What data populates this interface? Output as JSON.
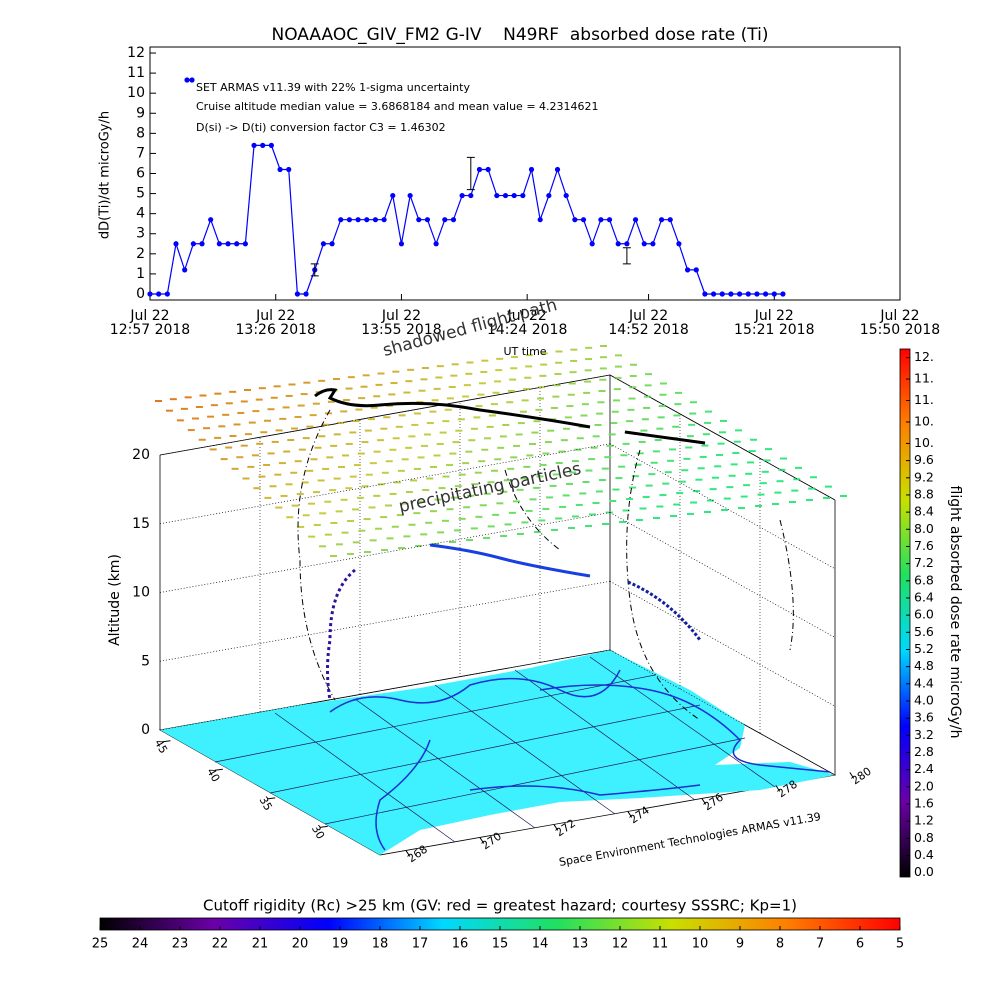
{
  "chart_data": [
    {
      "type": "line",
      "title": "NOAAAOC_GIV_FM2 G-IV    N49RF  absorbed dose rate (Ti)",
      "x_label": "UT time",
      "y_label": "dD(Ti)/dt microGy/h",
      "x": [
        "12:57",
        "12:59",
        "13:01",
        "13:03",
        "13:05",
        "13:07",
        "13:09",
        "13:11",
        "13:13",
        "13:15",
        "13:17",
        "13:19",
        "13:21",
        "13:23",
        "13:25",
        "13:27",
        "13:29",
        "13:31",
        "13:33",
        "13:35",
        "13:37",
        "13:39",
        "13:41",
        "13:43",
        "13:45",
        "13:47",
        "13:49",
        "13:51",
        "13:53",
        "13:55",
        "13:57",
        "13:59",
        "14:01",
        "14:03",
        "14:05",
        "14:07",
        "14:09",
        "14:11",
        "14:13",
        "14:15",
        "14:17",
        "14:19",
        "14:21",
        "14:23",
        "14:25",
        "14:27",
        "14:29",
        "14:31",
        "14:33",
        "14:35",
        "14:37",
        "14:39",
        "14:41",
        "14:43",
        "14:45",
        "14:47",
        "14:49",
        "14:51",
        "14:53",
        "14:55",
        "14:57",
        "14:59",
        "15:01",
        "15:03",
        "15:05",
        "15:07",
        "15:09",
        "15:11",
        "15:13",
        "15:15",
        "15:17",
        "15:19",
        "15:21",
        "15:23"
      ],
      "series": [
        {
          "name": "SET ARMAS v11.39 with 22% 1-sigma uncertainty",
          "color": "#0000ff",
          "values": [
            0,
            0,
            0,
            2.5,
            1.2,
            2.5,
            2.5,
            3.7,
            2.5,
            2.5,
            2.5,
            2.5,
            7.4,
            7.4,
            7.4,
            6.2,
            6.2,
            0,
            0,
            1.2,
            2.5,
            2.5,
            3.7,
            3.7,
            3.7,
            3.7,
            3.7,
            3.7,
            4.9,
            2.5,
            4.9,
            3.7,
            3.7,
            2.5,
            3.7,
            3.7,
            4.9,
            4.9,
            6.2,
            6.2,
            4.9,
            4.9,
            4.9,
            4.9,
            6.2,
            3.7,
            4.9,
            6.2,
            4.9,
            3.7,
            3.7,
            2.5,
            3.7,
            3.7,
            2.5,
            2.5,
            3.7,
            2.5,
            2.5,
            3.7,
            3.7,
            2.5,
            1.2,
            1.2,
            0,
            0,
            0,
            0,
            0,
            0,
            0,
            0,
            0,
            0
          ]
        }
      ],
      "annotations": [
        "Cruise altitude median value = 3.6868184 and mean value = 4.2314621",
        "D(si) -> D(ti) conversion factor C3 = 1.46302"
      ],
      "error_bars": {
        "x": [
          "13:35",
          "14:11",
          "14:47"
        ],
        "values": [
          1.2,
          6,
          1.9
        ],
        "errors": [
          0.3,
          0.8,
          0.4
        ]
      },
      "xlim": [
        "12:57",
        "15:50"
      ],
      "xticks": [
        {
          "value": "12:57",
          "label": "Jul 22\n12:57 2018"
        },
        {
          "value": "13:26",
          "label": "Jul 22\n13:26 2018"
        },
        {
          "value": "13:55",
          "label": "Jul 22\n13:55 2018"
        },
        {
          "value": "14:24",
          "label": "Jul 22\n14:24 2018"
        },
        {
          "value": "14:52",
          "label": "Jul 22\n14:52 2018"
        },
        {
          "value": "15:21",
          "label": "Jul 22\n15:21 2018"
        },
        {
          "value": "15:50",
          "label": "Jul 22\n15:50 2018"
        }
      ],
      "ylim": [
        -0.3,
        12.3
      ],
      "yticks": [
        0,
        1,
        2,
        3,
        4,
        5,
        6,
        7,
        8,
        9,
        10,
        11,
        12
      ]
    },
    {
      "type": "surface3d",
      "z_label": "Altitude (km)",
      "zlim": [
        0,
        20
      ],
      "zticks": [
        0,
        5,
        10,
        15,
        20
      ],
      "lat_ticks": [
        45,
        40,
        35,
        30
      ],
      "latlim": [
        46,
        25
      ],
      "lon_ticks": [
        268,
        270,
        272,
        274,
        276,
        278,
        280
      ],
      "lonlim": [
        267.3,
        279.6
      ],
      "annotations": [
        "precipitating particles",
        "shadowed flight path"
      ],
      "credit": "Space Environment Technologies ARMAS v11.39"
    },
    {
      "type": "colorbar",
      "orientation": "vertical",
      "label": "flight absorbed dose rate microGy/h",
      "colors": [
        "#000000",
        "#6a00a8",
        "#0000ff",
        "#00d8ff",
        "#20e060",
        "#c8e000",
        "#ff8000",
        "#ff0000"
      ],
      "ylim": [
        -0.1,
        12.2
      ],
      "yticks": [
        {
          "value": 0,
          "label": "0.0"
        },
        0.4,
        0.8,
        1.2,
        1.6,
        {
          "value": 2,
          "label": "2.0"
        },
        2.4,
        2.8,
        3.2,
        3.6,
        {
          "value": 4,
          "label": "4.0"
        },
        4.4,
        4.8,
        5.2,
        5.6,
        {
          "value": 6,
          "label": "6.0"
        },
        6.4,
        6.8,
        7.2,
        7.6,
        {
          "value": 8,
          "label": "8.0"
        },
        8.4,
        8.8,
        9.2,
        9.6,
        {
          "value": 10,
          "label": "10."
        },
        {
          "value": 10.5,
          "label": "10."
        },
        {
          "value": 11,
          "label": "11."
        },
        {
          "value": 11.5,
          "label": "11."
        },
        {
          "value": 12,
          "label": "12."
        }
      ]
    },
    {
      "type": "colorbar",
      "orientation": "horizontal",
      "label": "Cutoff rigidity (Rc) >25 km (GV: red = greatest hazard; courtesy SSSRC; Kp=1)",
      "colors": [
        "#000000",
        "#6a00a8",
        "#0000ff",
        "#00d8ff",
        "#20e060",
        "#c8e000",
        "#ff8000",
        "#ff0000"
      ],
      "xlim": [
        25,
        5
      ],
      "xticks": [
        25,
        24,
        23,
        22,
        21,
        20,
        19,
        18,
        17,
        16,
        15,
        14,
        13,
        12,
        11,
        10,
        9,
        8,
        7,
        6,
        5
      ]
    }
  ]
}
